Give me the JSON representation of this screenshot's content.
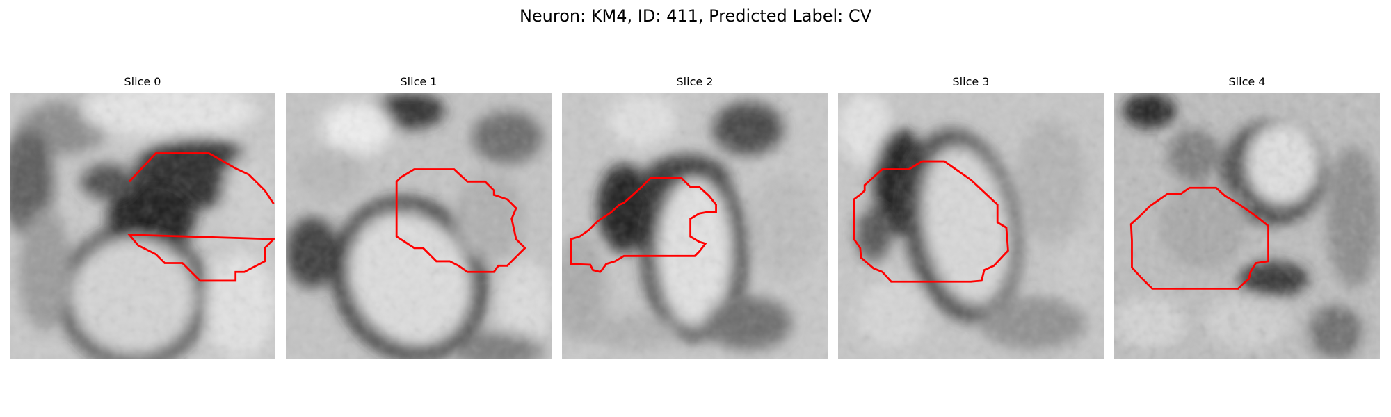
{
  "figure": {
    "title": "Neuron: KM4, ID: 411, Predicted Label: CV"
  },
  "contour_color": "#ff0000",
  "panels": [
    {
      "title": "Slice 0"
    },
    {
      "title": "Slice 1"
    },
    {
      "title": "Slice 2"
    },
    {
      "title": "Slice 3"
    },
    {
      "title": "Slice 4"
    }
  ]
}
